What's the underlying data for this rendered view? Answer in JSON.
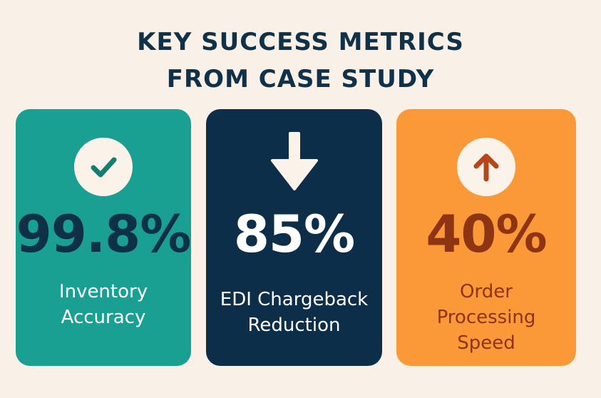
{
  "title": {
    "line1": "KEY SUCCESS METRICS",
    "line2": "FROM CASE STUDY"
  },
  "cards": [
    {
      "value": "99.8%",
      "label_lines": [
        "Inventory",
        "Accuracy"
      ],
      "icon": "checkmark-icon",
      "color": "#1aa093"
    },
    {
      "value": "85%",
      "label_lines": [
        "EDI Chargeback",
        "Reduction"
      ],
      "icon": "arrow-down-icon",
      "color": "#0d2e49"
    },
    {
      "value": "40%",
      "label_lines": [
        "Order",
        "Processing",
        "Speed"
      ],
      "icon": "arrow-up-icon",
      "color": "#fb9938"
    }
  ]
}
